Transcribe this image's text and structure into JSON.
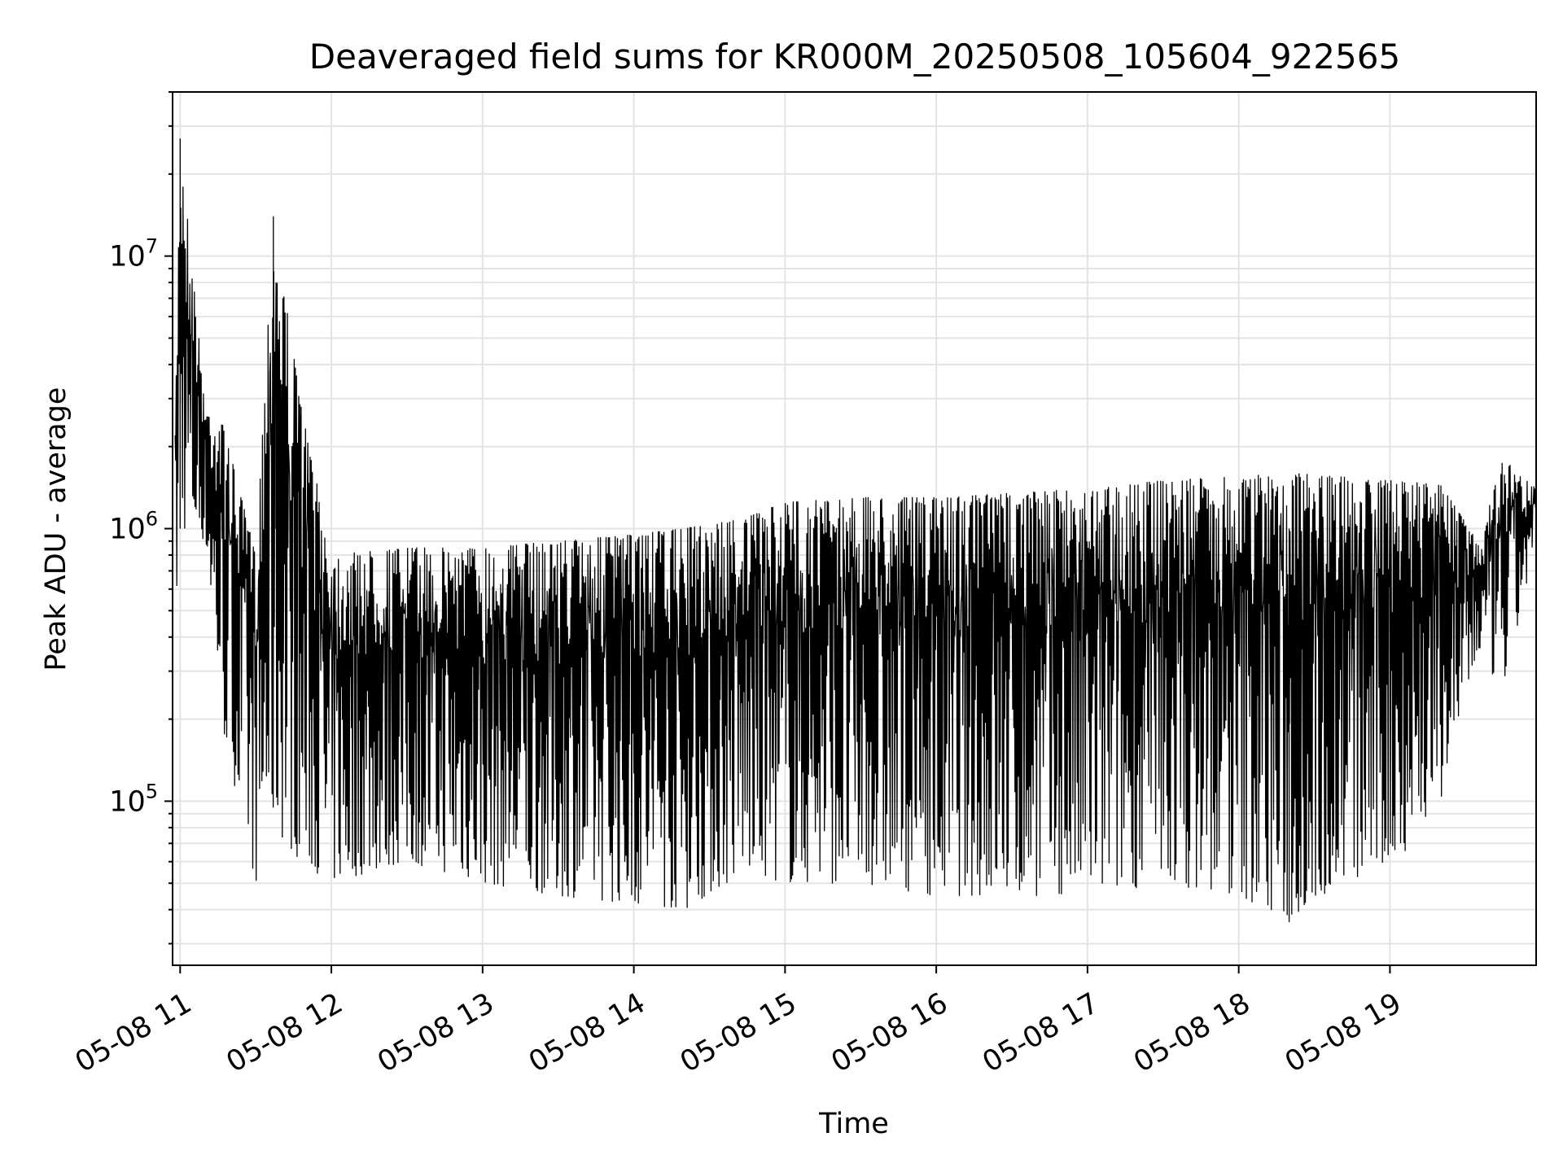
{
  "chart_data": {
    "type": "line",
    "title": "Deaveraged field sums for KR000M_20250508_105604_922565",
    "xlabel": "Time",
    "ylabel": "Peak ADU - average",
    "yscale": "log",
    "ylim": [
      25000,
      40000000
    ],
    "xlim": [
      "2025-05-08 10:57",
      "2025-05-08 19:58"
    ],
    "grid": true,
    "line_color": "#000000",
    "x_ticks": [
      "05-08 11",
      "05-08 12",
      "05-08 13",
      "05-08 14",
      "05-08 15",
      "05-08 16",
      "05-08 17",
      "05-08 18",
      "05-08 19"
    ],
    "y_ticks": [
      {
        "base": "10",
        "exp": "5",
        "value": 100000
      },
      {
        "base": "10",
        "exp": "6",
        "value": 1000000
      },
      {
        "base": "10",
        "exp": "7",
        "value": 10000000
      }
    ],
    "series": [
      {
        "style": "dense oscillating line, upper and lower envelope",
        "points": [
          {
            "x": "2025-05-08 10:58",
            "upper": 2200000,
            "lower": 380000
          },
          {
            "x": "2025-05-08 11:00",
            "upper": 27000000,
            "lower": 1000000
          },
          {
            "x": "2025-05-08 11:10",
            "upper": 2800000,
            "lower": 900000
          },
          {
            "x": "2025-05-08 11:17",
            "upper": 2400000,
            "lower": 180000
          },
          {
            "x": "2025-05-08 11:30",
            "upper": 800000,
            "lower": 50000
          },
          {
            "x": "2025-05-08 11:37",
            "upper": 14000000,
            "lower": 80000
          },
          {
            "x": "2025-05-08 11:48",
            "upper": 2800000,
            "lower": 60000
          },
          {
            "x": "2025-05-08 12:00",
            "upper": 800000,
            "lower": 50000
          },
          {
            "x": "2025-05-08 12:30",
            "upper": 850000,
            "lower": 60000
          },
          {
            "x": "2025-05-08 13:00",
            "upper": 850000,
            "lower": 50000
          },
          {
            "x": "2025-05-08 13:30",
            "upper": 900000,
            "lower": 45000
          },
          {
            "x": "2025-05-08 14:00",
            "upper": 950000,
            "lower": 42000
          },
          {
            "x": "2025-05-08 14:20",
            "upper": 1000000,
            "lower": 40000
          },
          {
            "x": "2025-05-08 14:45",
            "upper": 1100000,
            "lower": 55000
          },
          {
            "x": "2025-05-08 15:00",
            "upper": 1250000,
            "lower": 50000
          },
          {
            "x": "2025-05-08 15:30",
            "upper": 1300000,
            "lower": 50000
          },
          {
            "x": "2025-05-08 16:00",
            "upper": 1300000,
            "lower": 45000
          },
          {
            "x": "2025-05-08 16:30",
            "upper": 1350000,
            "lower": 45000
          },
          {
            "x": "2025-05-08 17:00",
            "upper": 1400000,
            "lower": 45000
          },
          {
            "x": "2025-05-08 17:30",
            "upper": 1500000,
            "lower": 50000
          },
          {
            "x": "2025-05-08 18:00",
            "upper": 1550000,
            "lower": 45000
          },
          {
            "x": "2025-05-08 18:20",
            "upper": 1600000,
            "lower": 36000
          },
          {
            "x": "2025-05-08 18:40",
            "upper": 1550000,
            "lower": 50000
          },
          {
            "x": "2025-05-08 19:00",
            "upper": 1500000,
            "lower": 55000
          },
          {
            "x": "2025-05-08 19:20",
            "upper": 1450000,
            "lower": 100000
          },
          {
            "x": "2025-05-08 19:35",
            "upper": 900000,
            "lower": 350000
          },
          {
            "x": "2025-05-08 19:45",
            "upper": 1800000,
            "lower": 250000
          },
          {
            "x": "2025-05-08 19:58",
            "upper": 1400000,
            "lower": 900000
          }
        ]
      }
    ]
  }
}
